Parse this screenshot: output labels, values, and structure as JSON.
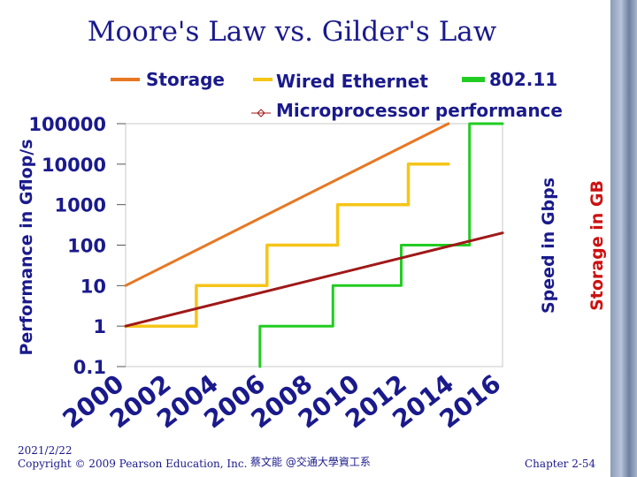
{
  "chart_data": {
    "type": "line",
    "title": "Moore's Law vs. Gilder's Law",
    "ylabel": "Performance in Gflop/s",
    "y2label_speed": "Speed in Gbps",
    "y2label_storage": "Storage in GB",
    "y_scale": "log",
    "ylim": [
      0.1,
      100000
    ],
    "y_ticks": [
      0.1,
      1,
      10,
      100,
      1000,
      10000,
      100000
    ],
    "y_tick_labels": [
      "0.1",
      "1",
      "10",
      "100",
      "1000",
      "10000",
      "100000"
    ],
    "xlim": [
      2000,
      2016
    ],
    "x_ticks": [
      2000,
      2002,
      2004,
      2006,
      2008,
      2010,
      2012,
      2014,
      2016
    ],
    "x_tick_labels": [
      "2000",
      "2002",
      "2004",
      "2006",
      "2008",
      "2010",
      "2012",
      "2014",
      "2016"
    ],
    "grid": false,
    "legend": {
      "storage": "Storage",
      "wired": "Wired Ethernet",
      "wifi": "802.11",
      "micro": "Microprocessor performance"
    },
    "series": [
      {
        "name": "Storage",
        "color": "#e87722",
        "style": "line",
        "x": [
          2000,
          2013.7
        ],
        "y": [
          10,
          100000
        ]
      },
      {
        "name": "Wired Ethernet",
        "color": "#f5c518",
        "style": "step",
        "x": [
          2000,
          2003,
          2003,
          2006,
          2006,
          2009,
          2009,
          2012,
          2012,
          2013.7
        ],
        "y": [
          1,
          1,
          10,
          10,
          100,
          100,
          1000,
          1000,
          10000,
          10000
        ]
      },
      {
        "name": "802.11",
        "color": "#22cc22",
        "style": "step",
        "x": [
          2005.7,
          2005.7,
          2008.8,
          2008.8,
          2011.7,
          2011.7,
          2014.6,
          2014.6,
          2016
        ],
        "y": [
          0.1,
          1,
          1,
          10,
          10,
          100,
          100,
          100000,
          100000
        ]
      },
      {
        "name": "Microprocessor performance",
        "color": "#a01818",
        "style": "line",
        "x": [
          2000,
          2016
        ],
        "y": [
          1,
          200
        ]
      }
    ]
  },
  "footer": {
    "date": "2021/2/22",
    "copyright": "Copyright © 2009 Pearson Education, Inc.",
    "author": "蔡文能 @交通大學資工系",
    "chapter": "Chapter 2-54"
  },
  "colors": {
    "text": "#1a1a8c",
    "storage_label": "#cc1111",
    "axis": "#c8c8c8"
  }
}
